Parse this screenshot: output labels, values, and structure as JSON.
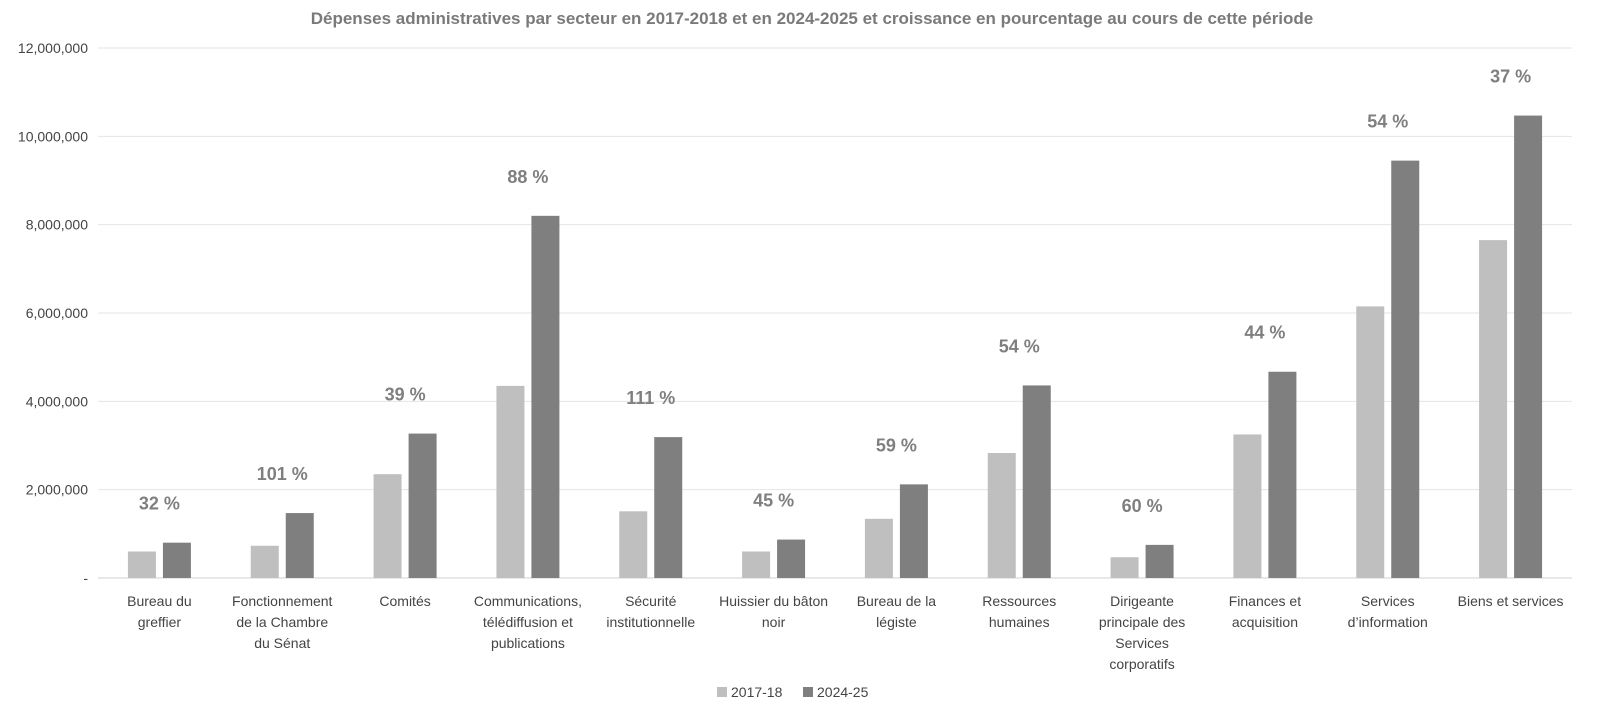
{
  "chart_data": {
    "type": "bar",
    "title": "Dépenses administratives par secteur en 2017-2018 et en 2024-2025 et croissance en pourcentage au cours de cette période",
    "xlabel": "",
    "ylabel": "",
    "ylim": [
      0,
      12000000
    ],
    "yticks": [
      "-",
      "2,000,000",
      "4,000,000",
      "6,000,000",
      "8,000,000",
      "10,000,000",
      "12,000,000"
    ],
    "grid": true,
    "legend_position": "bottom",
    "categories": [
      [
        "Bureau du",
        "greffier"
      ],
      [
        "Fonctionnement",
        "de la Chambre",
        "du Sénat"
      ],
      [
        "Comités"
      ],
      [
        "Communications,",
        "télédiffusion et",
        "publications"
      ],
      [
        "Sécurité",
        "institutionnelle"
      ],
      [
        "Huissier du bâton",
        "noir"
      ],
      [
        "Bureau de la",
        "légiste"
      ],
      [
        "Ressources",
        "humaines"
      ],
      [
        "Dirigeante",
        "principale des",
        "Services",
        "corporatifs"
      ],
      [
        "Finances et",
        "acquisition"
      ],
      [
        "Services",
        "d’information"
      ],
      [
        "Biens et services"
      ]
    ],
    "series": [
      {
        "name": "2017-18",
        "color": "#bfbfbf",
        "values": [
          600000,
          730000,
          2350000,
          4350000,
          1510000,
          600000,
          1340000,
          2830000,
          470000,
          3250000,
          6150000,
          7650000
        ]
      },
      {
        "name": "2024-25",
        "color": "#7f7f7f",
        "values": [
          800000,
          1470000,
          3270000,
          8200000,
          3190000,
          870000,
          2120000,
          4360000,
          750000,
          4670000,
          9450000,
          10470000
        ]
      }
    ],
    "growth_labels": [
      "32 %",
      "101 %",
      "39 %",
      "88 %",
      "111 %",
      "45 %",
      "59 %",
      "54 %",
      "60 %",
      "44 %",
      "54 %",
      "37 %"
    ]
  }
}
